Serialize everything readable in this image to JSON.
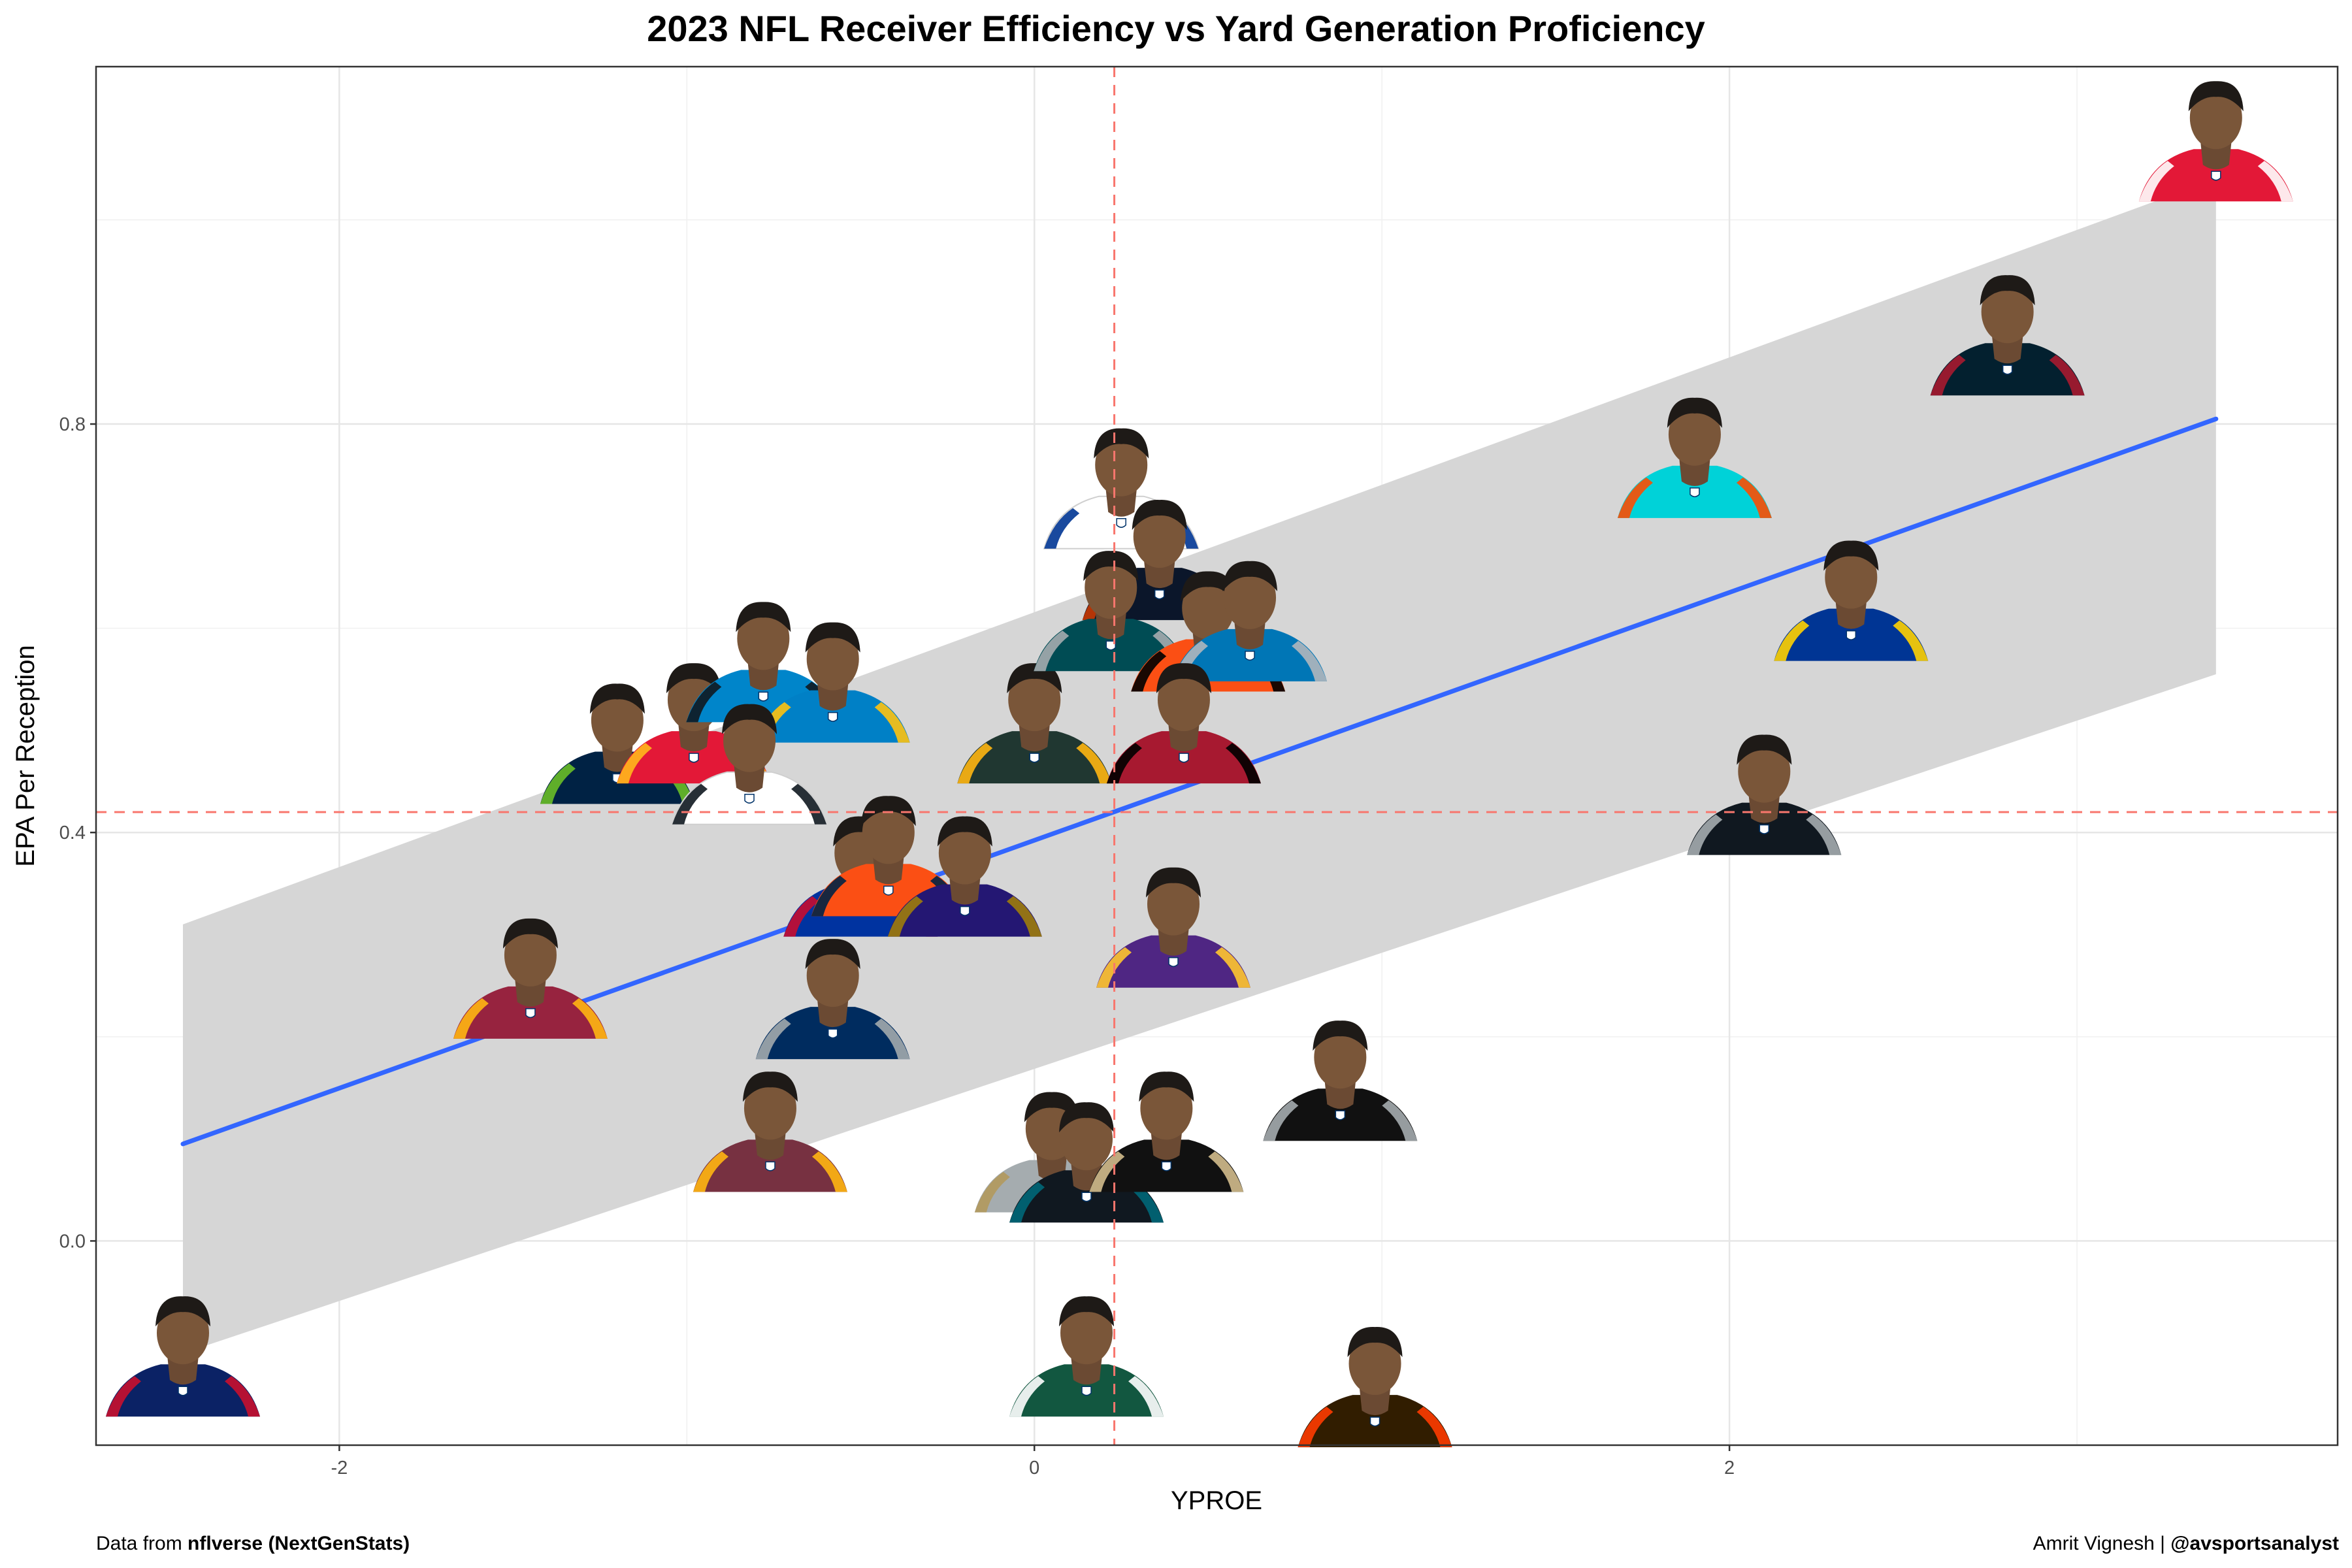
{
  "chart_data": {
    "type": "scatter",
    "title": "2023 NFL Receiver Efficiency vs Yard Generation Proficiency",
    "xlabel": "YPROE",
    "ylabel": "EPA Per Reception",
    "xlim": [
      -2.7,
      3.75
    ],
    "ylim": [
      -0.2,
      1.15
    ],
    "x_ticks": [
      -2,
      0,
      2
    ],
    "y_ticks": [
      0.0,
      0.4,
      0.8
    ],
    "x_tick_labels": [
      "-2",
      "0",
      "2"
    ],
    "y_tick_labels": [
      "0.0",
      "0.4",
      "0.8"
    ],
    "grid": true,
    "reference_lines": {
      "x": 0.23,
      "y": 0.42,
      "color": "#f8766d",
      "style": "dashed"
    },
    "trend": {
      "method": "linear",
      "color": "#3366ff",
      "ribbon_color": "#d6d6d6",
      "x": [
        -2.45,
        3.4
      ],
      "y": [
        0.095,
        0.805
      ],
      "ci_lower": [
        -0.11,
        0.555
      ],
      "ci_upper": [
        0.31,
        1.04
      ]
    },
    "points": [
      {
        "x": -2.45,
        "y": -0.14,
        "team_color": "#0b2265",
        "accent": "#c8102e"
      },
      {
        "x": -1.45,
        "y": 0.23,
        "team_color": "#97233f",
        "accent": "#ffb612"
      },
      {
        "x": -1.2,
        "y": 0.46,
        "team_color": "#002244",
        "accent": "#69be28"
      },
      {
        "x": -0.98,
        "y": 0.48,
        "team_color": "#e31837",
        "accent": "#ffb81c"
      },
      {
        "x": -0.78,
        "y": 0.54,
        "team_color": "#0085ca",
        "accent": "#101820"
      },
      {
        "x": -0.58,
        "y": 0.52,
        "team_color": "#0080c6",
        "accent": "#ffc20e"
      },
      {
        "x": -0.82,
        "y": 0.44,
        "team_color": "#ffffff",
        "accent": "#101820"
      },
      {
        "x": -0.58,
        "y": 0.21,
        "team_color": "#002c5f",
        "accent": "#a2aaad"
      },
      {
        "x": -0.5,
        "y": 0.33,
        "team_color": "#0033a0",
        "accent": "#c60c30"
      },
      {
        "x": -0.42,
        "y": 0.35,
        "team_color": "#fb4f14",
        "accent": "#002244"
      },
      {
        "x": -0.2,
        "y": 0.33,
        "team_color": "#241773",
        "accent": "#9e7c0c"
      },
      {
        "x": -0.76,
        "y": 0.08,
        "team_color": "#773141",
        "accent": "#ffb612"
      },
      {
        "x": 0.0,
        "y": 0.48,
        "team_color": "#203731",
        "accent": "#ffb612"
      },
      {
        "x": 0.25,
        "y": 0.71,
        "team_color": "#ffffff",
        "accent": "#003594"
      },
      {
        "x": 0.36,
        "y": 0.64,
        "team_color": "#0b162a",
        "accent": "#c83803"
      },
      {
        "x": 0.22,
        "y": 0.59,
        "team_color": "#004c54",
        "accent": "#a5acaf"
      },
      {
        "x": 0.5,
        "y": 0.57,
        "team_color": "#fb4f14",
        "accent": "#000000"
      },
      {
        "x": 0.62,
        "y": 0.58,
        "team_color": "#0076b6",
        "accent": "#b0b7bc"
      },
      {
        "x": 0.43,
        "y": 0.48,
        "team_color": "#a71930",
        "accent": "#000000"
      },
      {
        "x": 0.4,
        "y": 0.28,
        "team_color": "#4f2683",
        "accent": "#ffc62f"
      },
      {
        "x": 0.05,
        "y": 0.06,
        "team_color": "#a5acaf",
        "accent": "#b3995d"
      },
      {
        "x": 0.15,
        "y": 0.05,
        "team_color": "#101820",
        "accent": "#006778"
      },
      {
        "x": 0.38,
        "y": 0.08,
        "team_color": "#111111",
        "accent": "#d3bc8d"
      },
      {
        "x": 0.88,
        "y": 0.13,
        "team_color": "#111111",
        "accent": "#a5acaf"
      },
      {
        "x": 0.15,
        "y": -0.14,
        "team_color": "#125740",
        "accent": "#ffffff"
      },
      {
        "x": 0.98,
        "y": -0.17,
        "team_color": "#311d00",
        "accent": "#ff3c00"
      },
      {
        "x": 1.9,
        "y": 0.74,
        "team_color": "#00d2d8",
        "accent": "#fc4c02"
      },
      {
        "x": 2.1,
        "y": 0.41,
        "team_color": "#101820",
        "accent": "#a5acaf"
      },
      {
        "x": 2.35,
        "y": 0.6,
        "team_color": "#003594",
        "accent": "#ffd100"
      },
      {
        "x": 2.8,
        "y": 0.86,
        "team_color": "#03202f",
        "accent": "#a71930"
      },
      {
        "x": 3.4,
        "y": 1.05,
        "team_color": "#e31837",
        "accent": "#ffffff"
      }
    ]
  },
  "caption": {
    "left_prefix": "Data from ",
    "left_bold": "nflverse (NextGenStats)",
    "right_prefix": "Amrit Vignesh | ",
    "right_bold": "@avsportsanalyst"
  }
}
